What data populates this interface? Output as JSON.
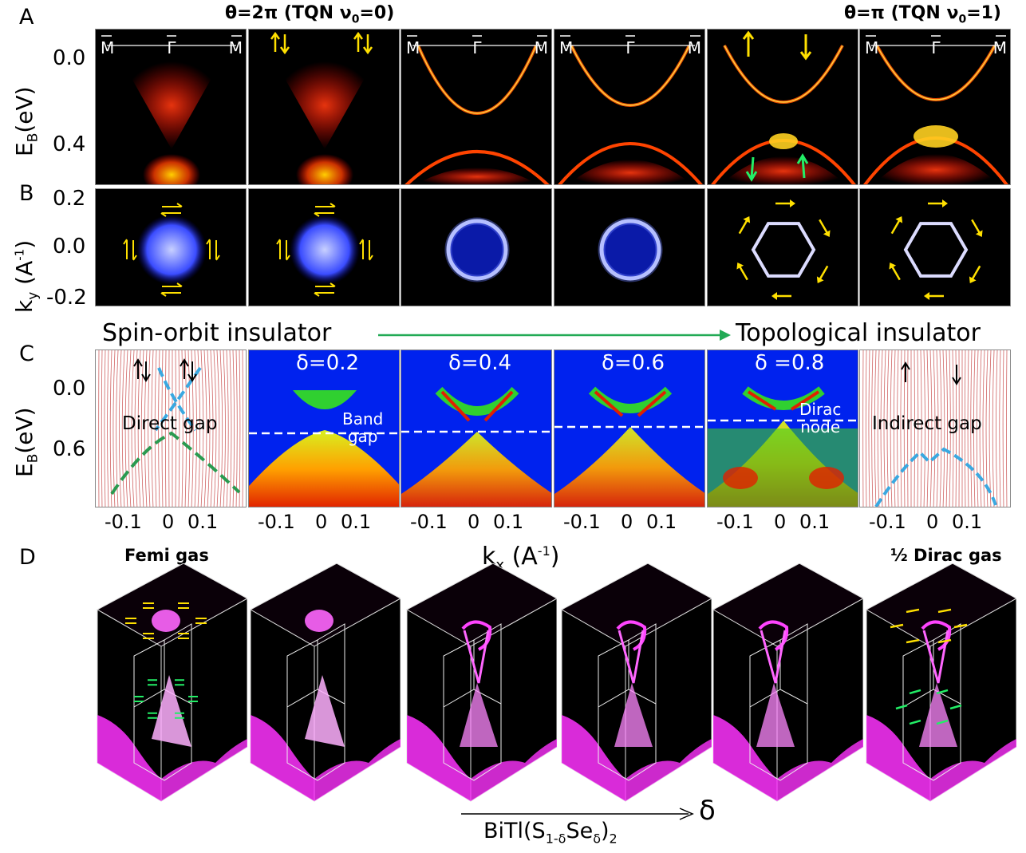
{
  "panel_letters": [
    "A",
    "B",
    "C",
    "D"
  ],
  "row_a": {
    "header_left": "θ=2π (TQN ν",
    "header_left_sub": "0",
    "header_left_tail": "=0)",
    "header_right": "θ=π (TQN ν",
    "header_right_sub": "0",
    "header_right_tail": "=1)",
    "ylabel_main": "E",
    "ylabel_sub": "B",
    "ylabel_tail": "(eV)",
    "yticks": [
      "0.0",
      "0.4"
    ],
    "k_path_labels": [
      "M",
      "Γ",
      "M"
    ]
  },
  "row_b": {
    "ylabel_main": "k",
    "ylabel_sub": "y",
    "ylabel_tail": " (A",
    "ylabel_sup": "-1",
    "ylabel_close": ")",
    "yticks": [
      "0.2",
      "0.0",
      "-0.2"
    ],
    "arrow_left_text": "Spin-orbit insulator",
    "arrow_right_text": "Topological insulator"
  },
  "row_c": {
    "ylabel_main": "E",
    "ylabel_sub": "B",
    "ylabel_tail": "(eV)",
    "yticks": [
      "0.0",
      "0.6"
    ],
    "xticks": [
      "-0.1",
      "0",
      "0.1"
    ],
    "panels": [
      {
        "text": "Direct gap"
      },
      {
        "delta": "δ=0.2",
        "note_line1": "Band",
        "note_line2": "gap"
      },
      {
        "delta": "δ=0.4"
      },
      {
        "delta": "δ=0.6"
      },
      {
        "delta": "δ =0.8",
        "note_line1": "Dirac",
        "note_line2": "node"
      },
      {
        "text": "Indirect gap"
      }
    ],
    "xlabel_main": "k",
    "xlabel_sub": "x",
    "xlabel_tail": " (A",
    "xlabel_sup": "-1",
    "xlabel_close": ")"
  },
  "row_d": {
    "left_label": "Femi gas",
    "right_label": "½ Dirac gas",
    "formula_main": "BiTl(S",
    "formula_sub1": "1-δ",
    "formula_mid": "Se",
    "formula_sub2": "δ",
    "formula_tail": ")",
    "formula_sub3": "2",
    "delta_symbol": "δ"
  },
  "colors": {
    "arpes_bg": "#000000",
    "arpes_band": "#ff2a00",
    "fermi_surface": "#3a4cff",
    "row_c_bg": "#0022ee",
    "green_arrow": "#22aa55",
    "cube_glow": "#ff33ff"
  }
}
